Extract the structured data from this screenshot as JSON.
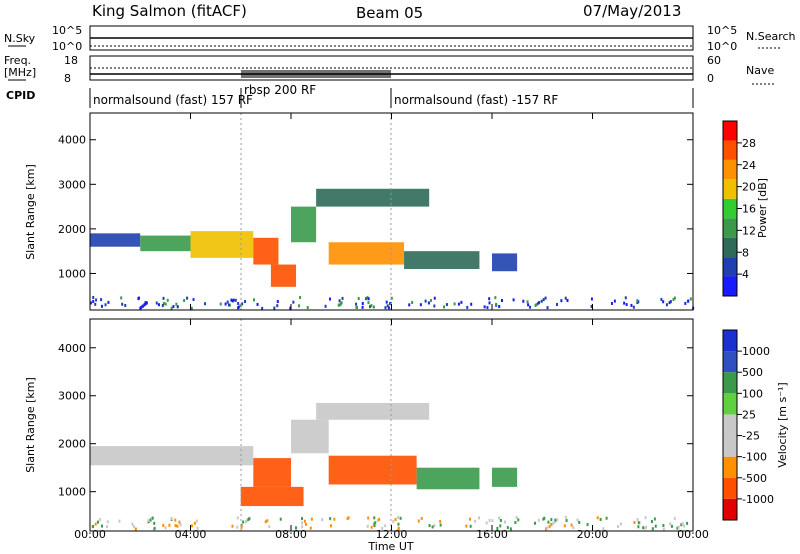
{
  "header": {
    "station": "King Salmon (fitACF)",
    "beam": "Beam 05",
    "date": "07/May/2013"
  },
  "params": {
    "nsky_label": "N.Sky",
    "nsky_ticks": [
      "10^5",
      "10^0"
    ],
    "nsearch_label": "N.Search",
    "nsearch_ticks": [
      "10^5",
      "10^0"
    ],
    "freq_label": "Freq.",
    "freq_unit": "[MHz]",
    "freq_ticks": [
      "18",
      "8"
    ],
    "nave_label": "Nave",
    "nave_ticks": [
      "60",
      "0"
    ],
    "cpid_label": "CPID",
    "cpid_segments": [
      {
        "label": "normalsound (fast) 157 RF",
        "start": 0.0,
        "end": 6.0
      },
      {
        "label": "rbsp 200 RF",
        "start": 6.0,
        "end": 12.0
      },
      {
        "label": "normalsound (fast) -157 RF",
        "start": 12.0,
        "end": 24.0
      }
    ]
  },
  "axes": {
    "ylabel": "Slant Range [km]",
    "xlabel": "Time UT",
    "xticks": [
      "00:00",
      "04:00",
      "08:00",
      "12:00",
      "16:00",
      "20:00",
      "00:00"
    ],
    "yticks": [
      "1000",
      "2000",
      "3000",
      "4000"
    ]
  },
  "colors": {
    "power": [
      "#1a1aff",
      "#2040b0",
      "#2e6a58",
      "#3a9a4a",
      "#33cc33",
      "#f0c000",
      "#ff9000",
      "#ff5000",
      "#ff0000"
    ],
    "velocity": [
      "#e00000",
      "#ff5000",
      "#ff9000",
      "#c8c8c8",
      "#c8c8c8",
      "#60d040",
      "#3a9a4a",
      "#3050c0",
      "#1a30d0"
    ]
  },
  "power_colorbar": {
    "label": "Power [dB]",
    "ticks": [
      "4",
      "8",
      "12",
      "16",
      "20",
      "24",
      "28"
    ]
  },
  "velocity_colorbar": {
    "label": "Velocity [m s⁻¹]",
    "ticks": [
      "-1000",
      "-500",
      "-100",
      "-25",
      "25",
      "100",
      "500",
      "1000"
    ]
  },
  "chart_data": [
    {
      "type": "heatmap",
      "title": "Power",
      "xlabel": "Time UT",
      "ylabel": "Slant Range [km]",
      "xlim": [
        0,
        24
      ],
      "ylim": [
        180,
        4600
      ],
      "colorbar_label": "Power [dB]",
      "colorbar_range": [
        0,
        30
      ],
      "regions": [
        {
          "t_start": 0.0,
          "t_end": 2.0,
          "r_low": 1600,
          "r_high": 1900,
          "value": 6
        },
        {
          "t_start": 2.0,
          "t_end": 4.0,
          "r_low": 1500,
          "r_high": 1850,
          "value": 10
        },
        {
          "t_start": 4.0,
          "t_end": 6.5,
          "r_low": 1350,
          "r_high": 1950,
          "value": 18
        },
        {
          "t_start": 6.5,
          "t_end": 7.5,
          "r_low": 1200,
          "r_high": 1800,
          "value": 24
        },
        {
          "t_start": 7.2,
          "t_end": 8.2,
          "r_low": 700,
          "r_high": 1200,
          "value": 24
        },
        {
          "t_start": 8.0,
          "t_end": 9.0,
          "r_low": 1700,
          "r_high": 2500,
          "value": 10
        },
        {
          "t_start": 9.0,
          "t_end": 13.5,
          "r_low": 2500,
          "r_high": 2900,
          "value": 8
        },
        {
          "t_start": 9.5,
          "t_end": 12.5,
          "r_low": 1200,
          "r_high": 1700,
          "value": 22
        },
        {
          "t_start": 12.5,
          "t_end": 15.5,
          "r_low": 1100,
          "r_high": 1500,
          "value": 8
        },
        {
          "t_start": 16.0,
          "t_end": 17.0,
          "r_low": 1050,
          "r_high": 1450,
          "value": 5
        }
      ]
    },
    {
      "type": "heatmap",
      "title": "Velocity",
      "xlabel": "Time UT",
      "ylabel": "Slant Range [km]",
      "xlim": [
        0,
        24
      ],
      "ylim": [
        180,
        4600
      ],
      "colorbar_label": "Velocity [m s⁻¹]",
      "colorbar_range": [
        -1000,
        1000
      ],
      "regions": [
        {
          "t_start": 0.0,
          "t_end": 6.5,
          "r_low": 1550,
          "r_high": 1950,
          "value": 0
        },
        {
          "t_start": 6.5,
          "t_end": 8.0,
          "r_low": 1100,
          "r_high": 1700,
          "value": -200
        },
        {
          "t_start": 6.0,
          "t_end": 8.5,
          "r_low": 700,
          "r_high": 1100,
          "value": -300
        },
        {
          "t_start": 8.0,
          "t_end": 9.5,
          "r_low": 1800,
          "r_high": 2500,
          "value": 0
        },
        {
          "t_start": 9.0,
          "t_end": 13.5,
          "r_low": 2500,
          "r_high": 2850,
          "value": 0
        },
        {
          "t_start": 9.5,
          "t_end": 13.0,
          "r_low": 1150,
          "r_high": 1750,
          "value": -250
        },
        {
          "t_start": 13.0,
          "t_end": 15.5,
          "r_low": 1050,
          "r_high": 1500,
          "value": 150
        },
        {
          "t_start": 16.0,
          "t_end": 17.0,
          "r_low": 1100,
          "r_high": 1500,
          "value": 300
        }
      ]
    }
  ]
}
